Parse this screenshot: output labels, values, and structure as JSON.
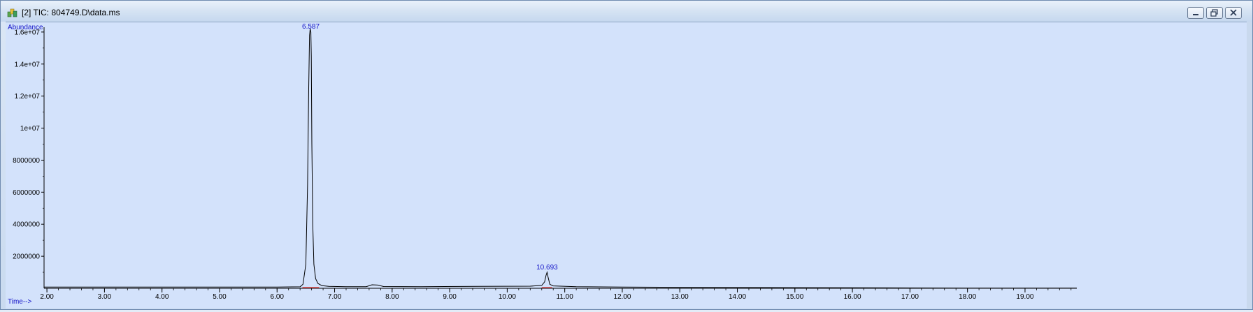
{
  "window": {
    "title": "[2] TIC: 804749.D\\data.ms",
    "icon": "chromatogram-app-icon",
    "controls": [
      "minimize",
      "restore",
      "close"
    ]
  },
  "chart_data": {
    "type": "line",
    "ylabel": "Abundance",
    "xlabel": "Time-->",
    "xlim": [
      1.95,
      19.9
    ],
    "ylim": [
      0,
      16300000
    ],
    "x_ticks": [
      2,
      3,
      4,
      5,
      6,
      7,
      8,
      9,
      10,
      11,
      12,
      13,
      14,
      15,
      16,
      17,
      18,
      19
    ],
    "x_tick_labels": [
      "2.00",
      "3.00",
      "4.00",
      "5.00",
      "6.00",
      "7.00",
      "8.00",
      "9.00",
      "10.00",
      "11.00",
      "12.00",
      "13.00",
      "14.00",
      "15.00",
      "16.00",
      "17.00",
      "18.00",
      "19.00"
    ],
    "y_ticks": [
      2000000,
      4000000,
      6000000,
      8000000,
      10000000,
      12000000,
      14000000,
      16000000
    ],
    "y_tick_labels": [
      "2000000",
      "4000000",
      "6000000",
      "8000000",
      "1e+07",
      "1.2e+07",
      "1.4e+07",
      "1.6e+07"
    ],
    "series": [
      {
        "x": [
          1.95,
          3.0,
          4.0,
          5.0,
          6.0,
          6.4,
          6.45,
          6.5,
          6.53,
          6.55,
          6.565,
          6.575,
          6.587,
          6.595,
          6.605,
          6.62,
          6.64,
          6.67,
          6.71,
          6.78,
          6.9,
          7.2,
          7.55,
          7.65,
          7.75,
          7.85,
          8.5,
          9.5,
          10.4,
          10.6,
          10.65,
          10.675,
          10.693,
          10.71,
          10.74,
          10.8,
          11.2,
          12.0,
          13.0,
          14.0,
          15.0,
          16.0,
          17.0,
          18.0,
          19.0,
          19.9
        ],
        "y": [
          80000,
          80000,
          75000,
          75000,
          80000,
          90000,
          250000,
          1500000,
          6500000,
          12500000,
          15800000,
          16200000,
          16000000,
          14500000,
          9000000,
          4000000,
          1500000,
          600000,
          300000,
          160000,
          120000,
          100000,
          100000,
          220000,
          200000,
          110000,
          100000,
          120000,
          130000,
          180000,
          400000,
          800000,
          1000000,
          700000,
          250000,
          150000,
          100000,
          80000,
          60000,
          50000,
          40000,
          30000,
          20000,
          15000,
          10000,
          8000
        ]
      }
    ],
    "peak_labels": [
      {
        "x": 6.587,
        "label": "6.587"
      },
      {
        "x": 10.693,
        "label": "10.693"
      }
    ],
    "baseline_segments": [
      [
        6.44,
        6.73
      ],
      [
        10.6,
        10.78
      ]
    ],
    "colors": {
      "trace": "#000000",
      "labels": "#1515c8",
      "baseline": "#d24040",
      "background": "#d3e2fb"
    }
  }
}
